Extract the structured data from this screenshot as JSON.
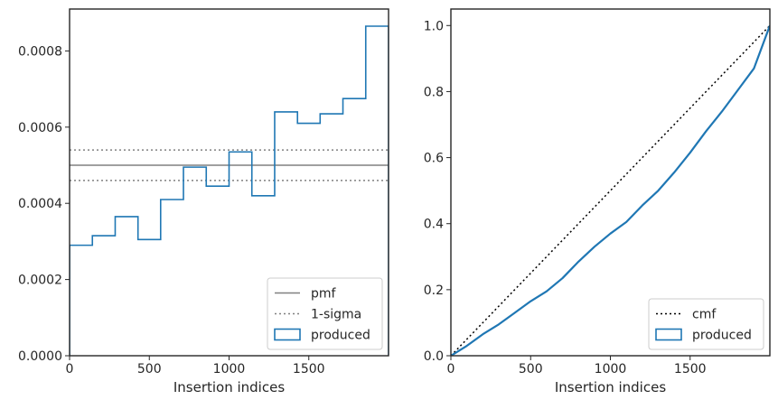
{
  "colors": {
    "produced": "#1f77b4",
    "pmf": "#808080",
    "sigma": "#808080",
    "cmf": "#000000",
    "axes": "#262626"
  },
  "chart_data": [
    {
      "type": "histogram",
      "xlabel": "Insertion indices",
      "ylabel": "",
      "xlim": [
        0,
        2000
      ],
      "ylim": [
        0,
        0.00091
      ],
      "xticks": [
        0,
        500,
        1000,
        1500
      ],
      "xtick_labels": [
        "0",
        "500",
        "1000",
        "1500"
      ],
      "yticks": [
        0,
        0.0002,
        0.0004,
        0.0006,
        0.0008
      ],
      "ytick_labels": [
        "0.0000",
        "0.0002",
        "0.0004",
        "0.0006",
        "0.0008"
      ],
      "pmf": 0.0005,
      "sigma_band": [
        0.00046,
        0.00054
      ],
      "bin_edges": [
        0,
        143,
        286,
        429,
        571,
        714,
        857,
        1000,
        1143,
        1286,
        1429,
        1571,
        1714,
        1857,
        2000
      ],
      "bin_values": [
        0.00029,
        0.000315,
        0.000365,
        0.000305,
        0.00041,
        0.000495,
        0.000445,
        0.000535,
        0.00042,
        0.00064,
        0.00061,
        0.000635,
        0.000675,
        0.000865
      ],
      "legend": {
        "position": "lower right",
        "entries": [
          {
            "label": "pmf",
            "style": "solid"
          },
          {
            "label": "1-sigma",
            "style": "dotted"
          },
          {
            "label": "produced",
            "style": "patch"
          }
        ]
      }
    },
    {
      "type": "line",
      "xlabel": "Insertion indices",
      "ylabel": "",
      "xlim": [
        0,
        2000
      ],
      "ylim": [
        0,
        1.05
      ],
      "xticks": [
        0,
        500,
        1000,
        1500
      ],
      "xtick_labels": [
        "0",
        "500",
        "1000",
        "1500"
      ],
      "yticks": [
        0,
        0.2,
        0.4,
        0.6,
        0.8,
        1.0
      ],
      "ytick_labels": [
        "0.0",
        "0.2",
        "0.4",
        "0.6",
        "0.8",
        "1.0"
      ],
      "cmf": {
        "x": [
          0,
          2000
        ],
        "y": [
          0,
          1
        ]
      },
      "produced": {
        "x": [
          0,
          100,
          200,
          300,
          400,
          500,
          600,
          700,
          800,
          900,
          1000,
          1100,
          1200,
          1300,
          1400,
          1500,
          1600,
          1700,
          1800,
          1900,
          2000
        ],
        "y": [
          0,
          0.03,
          0.065,
          0.095,
          0.13,
          0.165,
          0.195,
          0.235,
          0.285,
          0.33,
          0.37,
          0.405,
          0.455,
          0.5,
          0.555,
          0.615,
          0.68,
          0.74,
          0.805,
          0.87,
          1.0
        ]
      },
      "legend": {
        "position": "lower right",
        "entries": [
          {
            "label": "cmf",
            "style": "dotted"
          },
          {
            "label": "produced",
            "style": "patch"
          }
        ]
      }
    }
  ]
}
